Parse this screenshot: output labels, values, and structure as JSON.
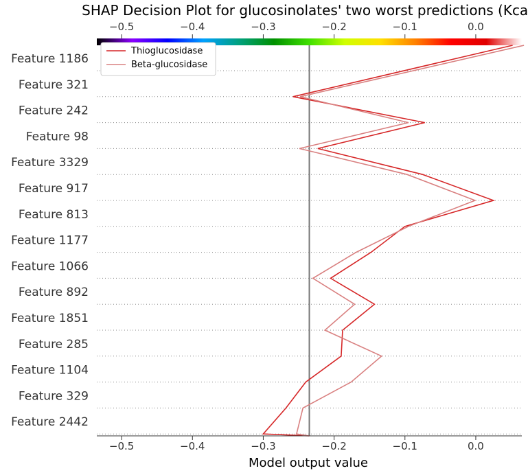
{
  "chart_data": {
    "type": "line",
    "title": "SHAP Decision Plot for glucosinolates' two worst predictions (Kcat)",
    "xlabel": "Model output value",
    "ylabel": "",
    "xlim": [
      -0.535,
      0.065
    ],
    "xticks": [
      -0.5,
      -0.4,
      -0.3,
      -0.2,
      -0.1,
      0.0
    ],
    "xtick_labels": [
      "−0.5",
      "−0.4",
      "−0.3",
      "−0.2",
      "−0.1",
      "0.0"
    ],
    "base_value": -0.235,
    "features": [
      "Feature 1186",
      "Feature 321",
      "Feature 242",
      "Feature 98",
      "Feature 3329",
      "Feature 917",
      "Feature 813",
      "Feature 1177",
      "Feature 1066",
      "Feature 892",
      "Feature 1851",
      "Feature 285",
      "Feature 1104",
      "Feature 329",
      "Feature 2442"
    ],
    "series": [
      {
        "name": "Thioglucosidase",
        "color": "#d62728",
        "values": [
          -0.235,
          -0.3,
          -0.268,
          -0.24,
          -0.19,
          -0.188,
          -0.143,
          -0.205,
          -0.148,
          -0.1,
          0.025,
          -0.075,
          -0.223,
          -0.072,
          -0.258,
          0.052
        ]
      },
      {
        "name": "Beta-glucosidase",
        "color": "#d98080",
        "values": [
          -0.235,
          -0.253,
          -0.244,
          -0.176,
          -0.133,
          -0.213,
          -0.171,
          -0.23,
          -0.169,
          -0.095,
          -0.001,
          -0.097,
          -0.249,
          -0.095,
          -0.248,
          0.068
        ]
      }
    ],
    "colorbar": {
      "position": "top",
      "stops": [
        "#000000",
        "#8b00ff",
        "#0000ff",
        "#00a0ff",
        "#00a080",
        "#009000",
        "#40e000",
        "#d0ff00",
        "#ffe000",
        "#ff8000",
        "#ff0000",
        "#e00000",
        "#ffffff"
      ]
    },
    "legend": "top-left",
    "grid": "dotted horizontal"
  }
}
